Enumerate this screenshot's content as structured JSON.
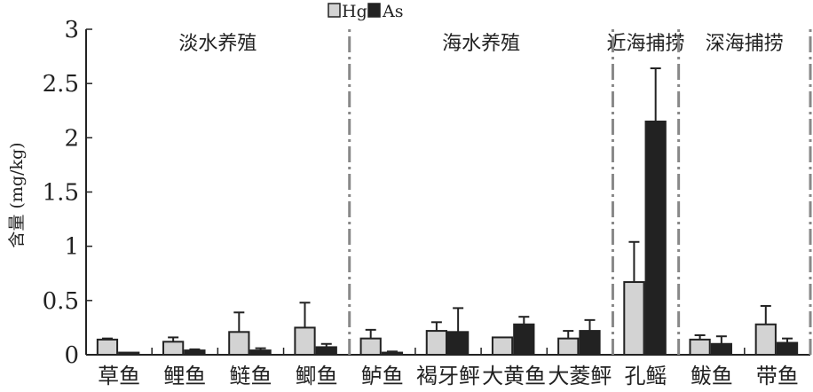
{
  "chart_data": {
    "type": "bar",
    "title": "",
    "xlabel": "",
    "ylabel": "含量 (mg/kg)",
    "ylim": [
      0,
      3
    ],
    "yticks": [
      "0",
      "0.5",
      "1",
      "1.5",
      "2",
      "2.5",
      "3"
    ],
    "legend": {
      "placement": "top-center",
      "entries": [
        "Hg",
        "As"
      ]
    },
    "categories": [
      "草鱼",
      "鲤鱼",
      "鲢鱼",
      "鲫鱼",
      "鲈鱼",
      "褐牙鲆",
      "大黄鱼",
      "大菱鲆",
      "孔鳐",
      "鲅鱼",
      "带鱼"
    ],
    "series": [
      {
        "name": "Hg",
        "color": "#d3d3d3",
        "values": [
          0.14,
          0.12,
          0.21,
          0.25,
          0.15,
          0.22,
          0.16,
          0.15,
          0.67,
          0.14,
          0.28
        ],
        "error_top": [
          0.15,
          0.16,
          0.39,
          0.48,
          0.23,
          0.3,
          null,
          0.22,
          1.04,
          0.18,
          0.45
        ]
      },
      {
        "name": "As",
        "color": "#222222",
        "values": [
          0.02,
          0.04,
          0.04,
          0.07,
          0.02,
          0.21,
          0.28,
          0.22,
          2.15,
          0.1,
          0.11
        ],
        "error_top": [
          null,
          0.05,
          0.06,
          0.1,
          0.03,
          0.43,
          0.35,
          0.32,
          2.64,
          0.17,
          0.15
        ]
      }
    ],
    "groups": [
      {
        "label": "淡水养殖",
        "from": 0,
        "to": 3
      },
      {
        "label": "海水养殖",
        "from": 4,
        "to": 7
      },
      {
        "label": "近海捕捞",
        "from": 8,
        "to": 8
      },
      {
        "label": "深海捕捞",
        "from": 9,
        "to": 10
      }
    ]
  }
}
